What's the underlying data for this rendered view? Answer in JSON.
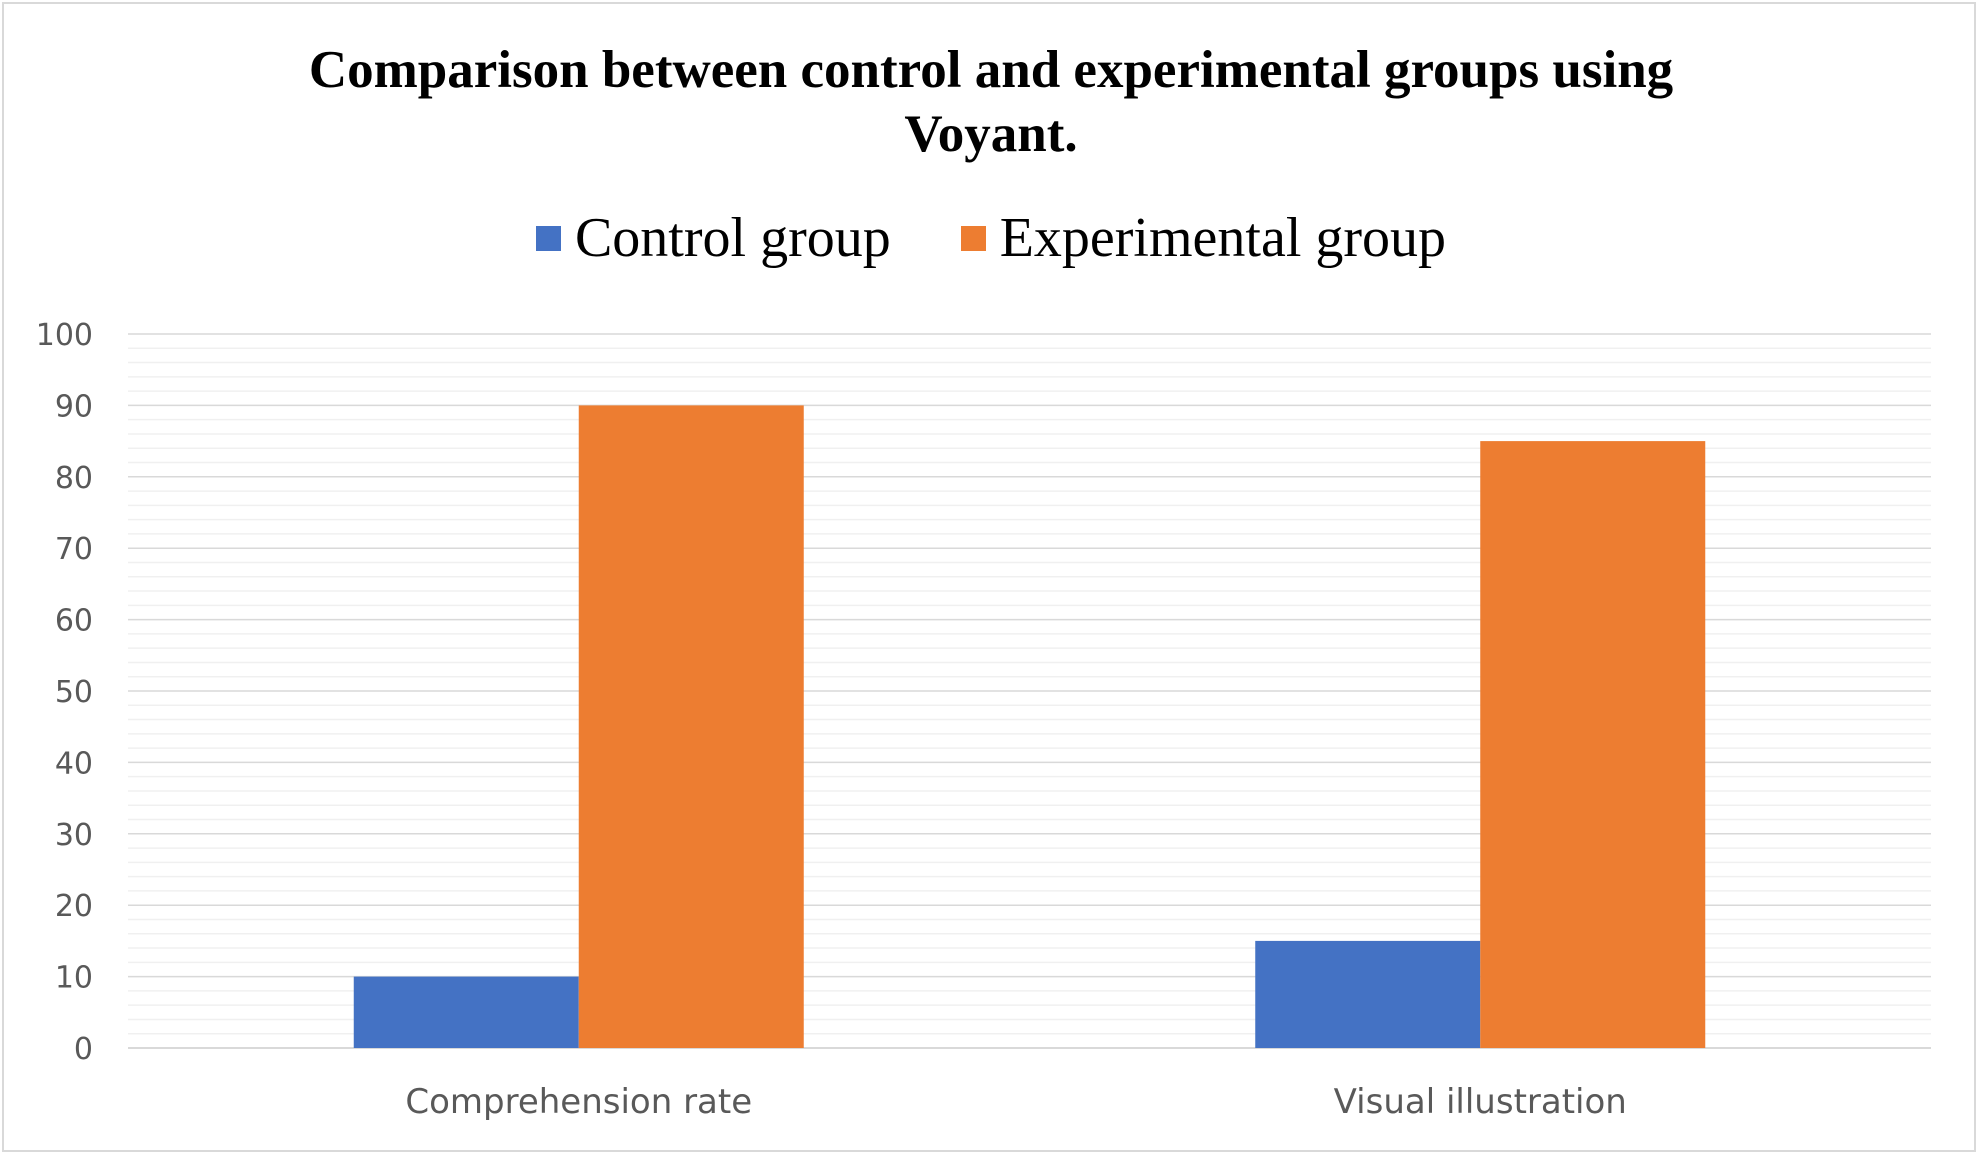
{
  "chart_data": {
    "type": "bar",
    "title": "Comparison between control and experimental groups using Voyant.",
    "title_lines": [
      "Comparison between control and experimental groups using",
      "Voyant."
    ],
    "categories": [
      "Comprehension rate",
      "Visual illustration"
    ],
    "series": [
      {
        "name": "Control group",
        "color": "#4472c4",
        "values": [
          10,
          15
        ]
      },
      {
        "name": "Experimental group",
        "color": "#ed7d31",
        "values": [
          90,
          85
        ]
      }
    ],
    "ylim": [
      0,
      100
    ],
    "y_ticks": [
      "0",
      "10",
      "20",
      "30",
      "40",
      "50",
      "60",
      "70",
      "80",
      "90",
      "100"
    ],
    "xlabel": "",
    "ylabel": "",
    "grid": true,
    "minor_grid": true,
    "legend_position": "top"
  }
}
